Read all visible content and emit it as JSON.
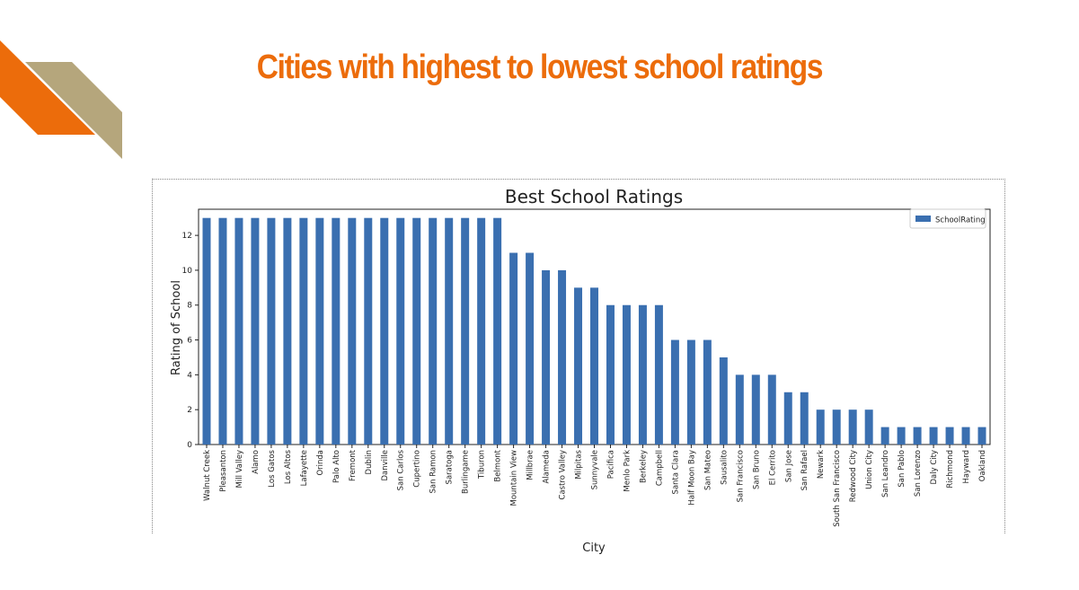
{
  "slide": {
    "title": "Cities with highest to lowest school ratings",
    "title_color": "#ec6c0b",
    "decoration_colors": [
      "#ec6c0b",
      "#b5a67c"
    ]
  },
  "chart_data": {
    "type": "bar",
    "title": "Best School Ratings",
    "xlabel": "City",
    "ylabel": "Rating of School",
    "ylim": [
      0,
      13.5
    ],
    "yticks": [
      0,
      2,
      4,
      6,
      8,
      10,
      12
    ],
    "grid": false,
    "legend_position": "top-right",
    "bar_color": "#3a6fb0",
    "categories": [
      "Walnut Creek",
      "Pleasanton",
      "Mill Valley",
      "Alamo",
      "Los Gatos",
      "Los Altos",
      "Lafayette",
      "Orinda",
      "Palo Alto",
      "Fremont",
      "Dublin",
      "Danville",
      "San Carlos",
      "Cupertino",
      "San Ramon",
      "Saratoga",
      "Burlingame",
      "Tiburon",
      "Belmont",
      "Mountain View",
      "Millbrae",
      "Alameda",
      "Castro Valley",
      "Milpitas",
      "Sunnyvale",
      "Pacifica",
      "Menlo Park",
      "Berkeley",
      "Campbell",
      "Santa Clara",
      "Half Moon Bay",
      "San Mateo",
      "Sausalito",
      "San Francisco",
      "San Bruno",
      "El Cerrito",
      "San Jose",
      "San Rafael",
      "Newark",
      "South San Francisco",
      "Redwood City",
      "Union City",
      "San Leandro",
      "San Pablo",
      "San Lorenzo",
      "Daly City",
      "Richmond",
      "Hayward",
      "Oakland"
    ],
    "series": [
      {
        "name": "SchoolRating",
        "values": [
          13,
          13,
          13,
          13,
          13,
          13,
          13,
          13,
          13,
          13,
          13,
          13,
          13,
          13,
          13,
          13,
          13,
          13,
          13,
          11,
          11,
          10,
          10,
          9,
          9,
          8,
          8,
          8,
          8,
          6,
          6,
          6,
          5,
          4,
          4,
          4,
          3,
          3,
          2,
          2,
          2,
          2,
          1,
          1,
          1,
          1,
          1,
          1,
          1
        ]
      }
    ]
  }
}
